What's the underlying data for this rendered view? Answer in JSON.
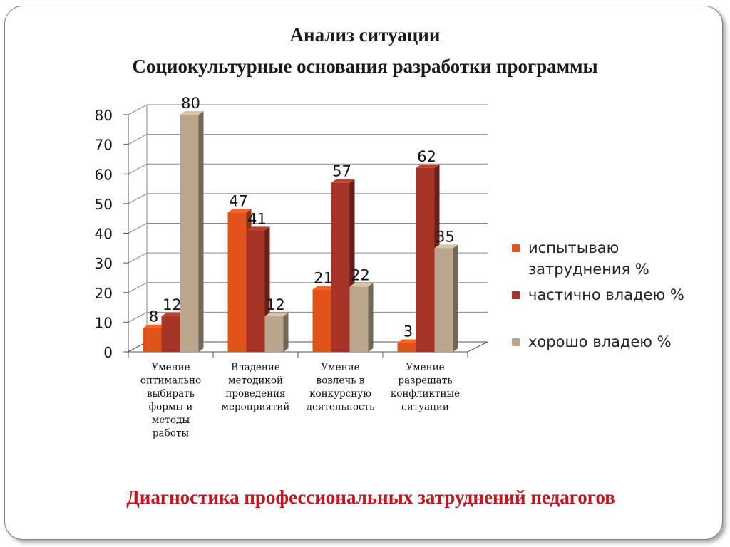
{
  "header": {
    "title": "Анализ ситуации",
    "subtitle": "Социокультурные основания разработки программы"
  },
  "footer": {
    "text": "Диагностика профессиональных затруднений педагогов"
  },
  "legend": [
    {
      "line1": "испытываю",
      "line2": "затруднения %",
      "color": "#e2531c"
    },
    {
      "line1": "частично владею %",
      "line2": "",
      "color": "#a63426"
    },
    {
      "line1": "хорошо владею %",
      "line2": "",
      "color": "#b9a68c"
    }
  ],
  "chart_data": {
    "type": "bar",
    "style": "3d-clustered-column",
    "categories": [
      [
        "Умение",
        "оптимально",
        "выбирать",
        "формы и",
        "методы",
        "работы"
      ],
      [
        "Владение",
        "методикой",
        "проведения",
        "мероприятий"
      ],
      [
        "Умение",
        "вовлечь в",
        "конкурсную",
        "деятельность"
      ],
      [
        "Умение",
        "разрешать",
        "конфликтные",
        "ситуации"
      ]
    ],
    "series": [
      {
        "name": "испытываю затруднения %",
        "values": [
          8,
          47,
          21,
          3
        ],
        "color": "#e2531c"
      },
      {
        "name": "частично владею %",
        "values": [
          12,
          41,
          57,
          62
        ],
        "color": "#a63426"
      },
      {
        "name": "хорошо владею %",
        "values": [
          80,
          12,
          22,
          35
        ],
        "color": "#b9a68c"
      }
    ],
    "ylim": [
      0,
      80
    ],
    "yticks": [
      0,
      10,
      20,
      30,
      40,
      50,
      60,
      70,
      80
    ],
    "grid": true,
    "data_labels": true,
    "legend_position": "right"
  }
}
